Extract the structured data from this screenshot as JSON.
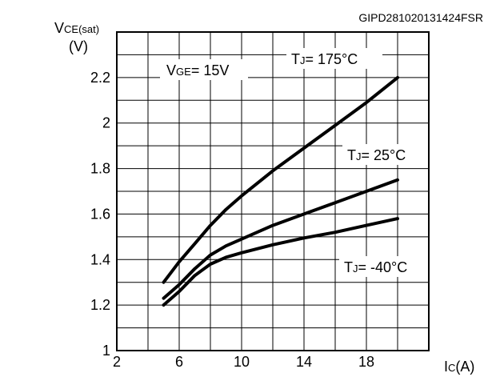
{
  "figure_code": "GIPD281020131424FSR",
  "y_axis": {
    "symbol": "V",
    "subscript": "CE(sat)",
    "unit": "(V)"
  },
  "x_axis": {
    "symbol": "I",
    "subscript": "C",
    "unit": "(A)"
  },
  "condition": {
    "symbol": "V",
    "subscript": "GE",
    "value": "= 15V"
  },
  "chart_data": {
    "type": "line",
    "xlim": [
      2,
      22
    ],
    "ylim": [
      1,
      2.4
    ],
    "x_ticks": [
      2,
      6,
      10,
      14,
      18
    ],
    "y_ticks": [
      1,
      1.2,
      1.4,
      1.6,
      1.8,
      2,
      2.2
    ],
    "y_tick_labels": [
      "1",
      "1.2",
      "1.4",
      "1.6",
      "1.8",
      "2",
      "2.2"
    ],
    "grid": true,
    "series": [
      {
        "name": "TJ= 175°C",
        "symbol": "T",
        "subscript": "J",
        "value": "= 175°C",
        "x": [
          5,
          6,
          7,
          8,
          9,
          10,
          12,
          14,
          16,
          18,
          20
        ],
        "y": [
          1.3,
          1.39,
          1.47,
          1.55,
          1.62,
          1.68,
          1.79,
          1.89,
          1.99,
          2.09,
          2.2
        ]
      },
      {
        "name": "TJ= 25°C",
        "symbol": "T",
        "subscript": "J",
        "value": "= 25°C",
        "x": [
          5,
          6,
          7,
          8,
          9,
          10,
          12,
          14,
          16,
          18,
          20
        ],
        "y": [
          1.23,
          1.29,
          1.36,
          1.42,
          1.46,
          1.49,
          1.55,
          1.6,
          1.65,
          1.7,
          1.75
        ]
      },
      {
        "name": "TJ= -40°C",
        "symbol": "T",
        "subscript": "J",
        "value": "= -40°C",
        "x": [
          5,
          6,
          7,
          8,
          9,
          10,
          12,
          14,
          16,
          18,
          20
        ],
        "y": [
          1.2,
          1.26,
          1.33,
          1.38,
          1.41,
          1.43,
          1.465,
          1.495,
          1.52,
          1.55,
          1.58
        ]
      }
    ]
  }
}
